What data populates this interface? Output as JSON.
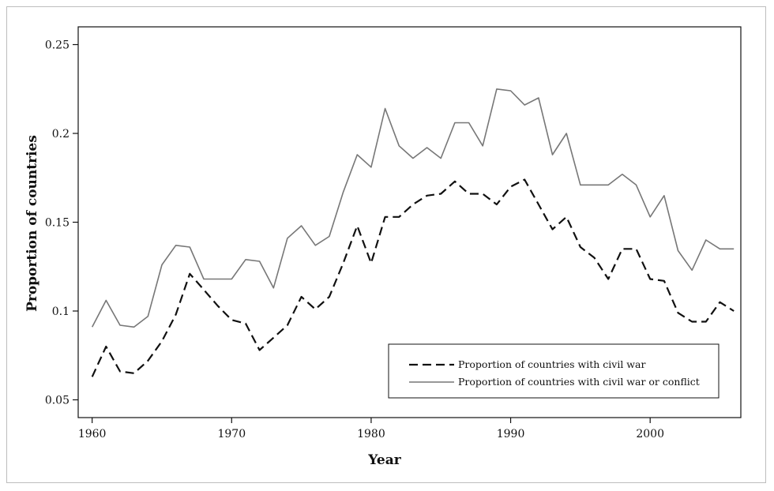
{
  "chart_data": {
    "type": "line",
    "xlabel": "Year",
    "ylabel": "Proportion of countries",
    "xlim": [
      1959,
      2006.5
    ],
    "ylim": [
      0.04,
      0.26
    ],
    "xticks": [
      1960,
      1970,
      1980,
      1990,
      2000
    ],
    "xtick_labels": [
      "1960",
      "1970",
      "1980",
      "1990",
      "2000"
    ],
    "yticks": [
      0.05,
      0.1,
      0.15,
      0.2,
      0.25
    ],
    "ytick_labels": [
      "0.05",
      "0.1",
      "0.15",
      "0.2",
      "0.25"
    ],
    "grid": false,
    "legend_position": "bottom-right",
    "x": [
      1960,
      1961,
      1962,
      1963,
      1964,
      1965,
      1966,
      1967,
      1968,
      1969,
      1970,
      1971,
      1972,
      1973,
      1974,
      1975,
      1976,
      1977,
      1978,
      1979,
      1980,
      1981,
      1982,
      1983,
      1984,
      1985,
      1986,
      1987,
      1988,
      1989,
      1990,
      1991,
      1992,
      1993,
      1994,
      1995,
      1996,
      1997,
      1998,
      1999,
      2000,
      2001,
      2002,
      2003,
      2004,
      2005,
      2006
    ],
    "series": [
      {
        "name": "Proportion of countries with civil war",
        "style": "dashed",
        "color": "#111111",
        "values": [
          0.063,
          0.08,
          0.066,
          0.065,
          0.072,
          0.083,
          0.098,
          0.121,
          0.112,
          0.103,
          0.095,
          0.093,
          0.078,
          0.085,
          0.092,
          0.108,
          0.101,
          0.108,
          0.127,
          0.148,
          0.127,
          0.153,
          0.153,
          0.16,
          0.165,
          0.166,
          0.173,
          0.166,
          0.166,
          0.16,
          0.17,
          0.174,
          0.16,
          0.146,
          0.153,
          0.136,
          0.13,
          0.118,
          0.135,
          0.135,
          0.118,
          0.117,
          0.099,
          0.094,
          0.094,
          0.105,
          0.1
        ]
      },
      {
        "name": "Proportion of countries with civil war or conflict",
        "style": "solid",
        "color": "#777777",
        "values": [
          0.091,
          0.106,
          0.092,
          0.091,
          0.097,
          0.126,
          0.137,
          0.136,
          0.118,
          0.118,
          0.118,
          0.129,
          0.128,
          0.113,
          0.141,
          0.148,
          0.137,
          0.142,
          0.167,
          0.188,
          0.181,
          0.214,
          0.193,
          0.186,
          0.192,
          0.186,
          0.206,
          0.206,
          0.193,
          0.225,
          0.224,
          0.216,
          0.22,
          0.188,
          0.2,
          0.171,
          0.171,
          0.171,
          0.177,
          0.171,
          0.153,
          0.165,
          0.134,
          0.123,
          0.14,
          0.135,
          0.135
        ]
      }
    ]
  }
}
